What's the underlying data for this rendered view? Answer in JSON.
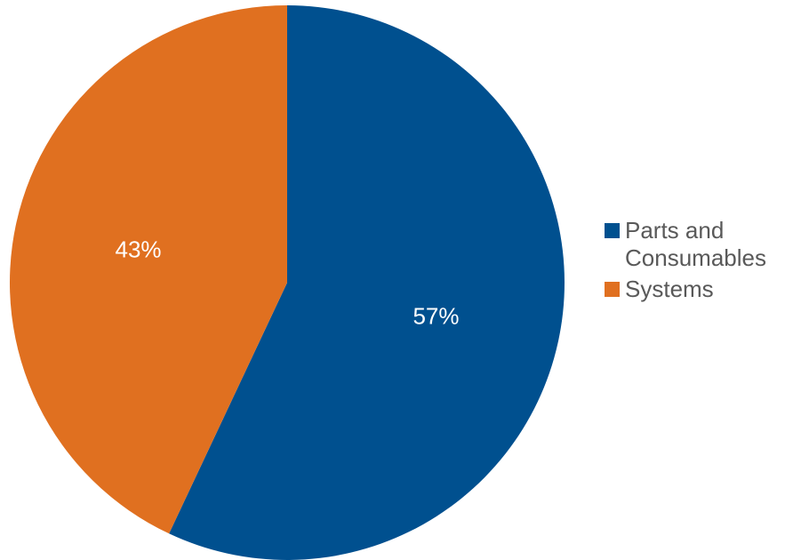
{
  "chart_data": {
    "type": "pie",
    "slices": [
      {
        "label": "Parts and Consumables",
        "value": 57,
        "display": "57%",
        "color": "#00508F"
      },
      {
        "label": "Systems",
        "value": 43,
        "display": "43%",
        "color": "#E07020"
      }
    ],
    "start_angle_deg": 0,
    "direction": "clockwise",
    "legend_position": "right"
  }
}
